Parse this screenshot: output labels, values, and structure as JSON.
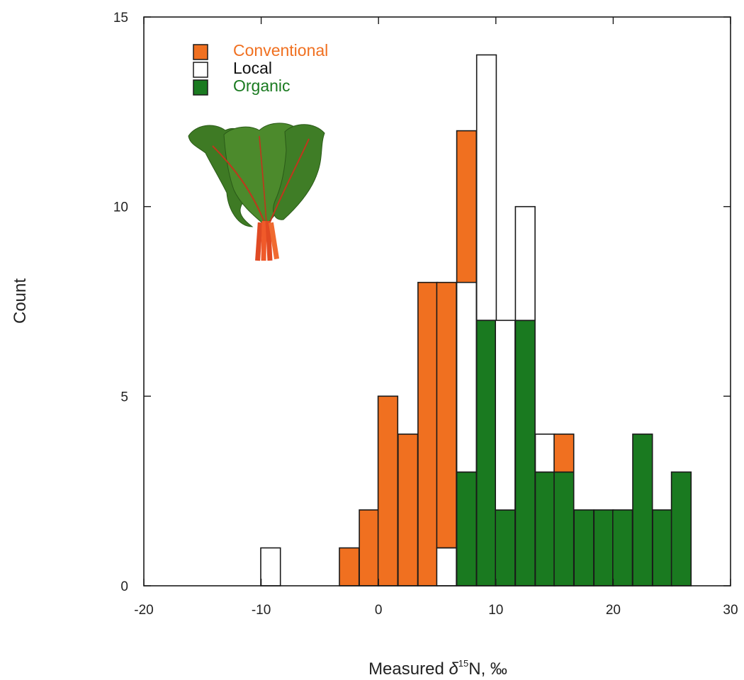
{
  "chart_data": {
    "type": "bar",
    "stacked": true,
    "xlabel_prefix": "Measured ",
    "xlabel_delta": "δ",
    "xlabel_sup": "15",
    "xlabel_suffix": "N, ‰",
    "ylabel": "Count",
    "xlim": [
      -20,
      30
    ],
    "ylim": [
      0,
      15
    ],
    "xticks": [
      "-20",
      "-10",
      "0",
      "10",
      "20",
      "30"
    ],
    "yticks": [
      "0",
      "5",
      "10",
      "15"
    ],
    "grid": false,
    "legend_position": "top-left",
    "bin_width": 1.67,
    "x": [
      -9.2,
      -2.5,
      -0.8,
      0.8,
      2.5,
      4.2,
      5.8,
      7.5,
      9.2,
      10.8,
      12.5,
      14.2,
      15.8,
      17.5,
      19.2,
      20.8,
      22.5,
      24.2,
      25.8
    ],
    "series": [
      {
        "name": "Organic",
        "color": "#1a7a20",
        "values": [
          0,
          0,
          0,
          0,
          0,
          0,
          0,
          3,
          7,
          2,
          7,
          3,
          3,
          2,
          2,
          2,
          4,
          2,
          3
        ]
      },
      {
        "name": "Local",
        "color": "#ffffff",
        "values": [
          1,
          0,
          0,
          0,
          0,
          0,
          1,
          5,
          7,
          5,
          3,
          1,
          0,
          0,
          0,
          0,
          0,
          0,
          0
        ]
      },
      {
        "name": "Conventional",
        "color": "#f07020",
        "values": [
          0,
          1,
          2,
          5,
          4,
          8,
          7,
          4,
          0,
          0,
          0,
          0,
          1,
          0,
          0,
          0,
          0,
          0,
          0
        ]
      }
    ],
    "legend_order": [
      "Conventional",
      "Local",
      "Organic"
    ]
  },
  "inset_image": {
    "subject": "chard-bunch-illustration"
  }
}
